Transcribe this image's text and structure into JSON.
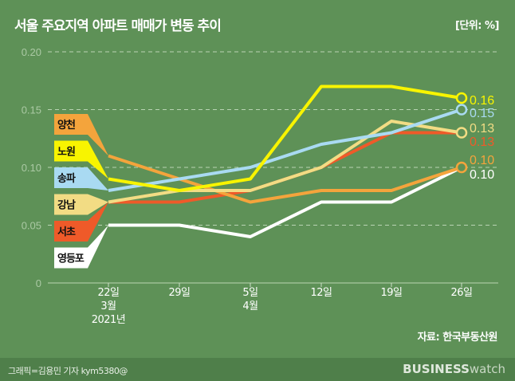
{
  "header": {
    "title": "서울 주요지역 아파트 매매가 변동 추이",
    "unit": "[단위: %]"
  },
  "footer": {
    "source": "자료: 한국부동산원",
    "credit": "그래픽=김용민 기자 kym5380@",
    "logo_bold": "BUSINESS",
    "logo_light": "watch"
  },
  "chart_data": {
    "type": "line",
    "title": "서울 주요지역 아파트 매매가 변동 추이",
    "ylabel": "%",
    "ylim": [
      0,
      0.2
    ],
    "yticks": [
      "0",
      "0.05",
      "0.10",
      "0.15",
      "0.20"
    ],
    "ytick_values": [
      0,
      0.05,
      0.1,
      0.15,
      0.2
    ],
    "grid": true,
    "categories": [
      "22일",
      "29일",
      "5일",
      "12일",
      "19일",
      "26일"
    ],
    "category_sub": [
      [
        "3월",
        "2021년"
      ],
      [],
      [
        "4월"
      ],
      [],
      [],
      []
    ],
    "series": [
      {
        "name": "영등포",
        "color": "#ffffff",
        "values": [
          0.05,
          0.05,
          0.04,
          0.07,
          0.07,
          0.1
        ],
        "end_label": "0.10",
        "end_marker": false
      },
      {
        "name": "서초",
        "color": "#ef5a29",
        "values": [
          0.07,
          0.07,
          0.08,
          0.1,
          0.13,
          0.13
        ],
        "end_label": "0.13",
        "end_marker": false
      },
      {
        "name": "양천",
        "color": "#f4a43c",
        "values": [
          0.11,
          0.09,
          0.07,
          0.08,
          0.08,
          0.1
        ],
        "end_label": "0.10",
        "end_marker": true
      },
      {
        "name": "강남",
        "color": "#f2dc84",
        "values": [
          0.07,
          0.08,
          0.08,
          0.1,
          0.14,
          0.13
        ],
        "end_label": "0.13",
        "end_marker": true
      },
      {
        "name": "송파",
        "color": "#a9daf2",
        "values": [
          0.08,
          0.09,
          0.1,
          0.12,
          0.13,
          0.15
        ],
        "end_label": "0.15",
        "end_marker": true
      },
      {
        "name": "노원",
        "color": "#f8f400",
        "values": [
          0.09,
          0.08,
          0.09,
          0.17,
          0.17,
          0.16
        ],
        "end_label": "0.16",
        "end_marker": true
      }
    ],
    "legend_order": [
      "양천",
      "노원",
      "송파",
      "강남",
      "서초",
      "영등포"
    ]
  }
}
